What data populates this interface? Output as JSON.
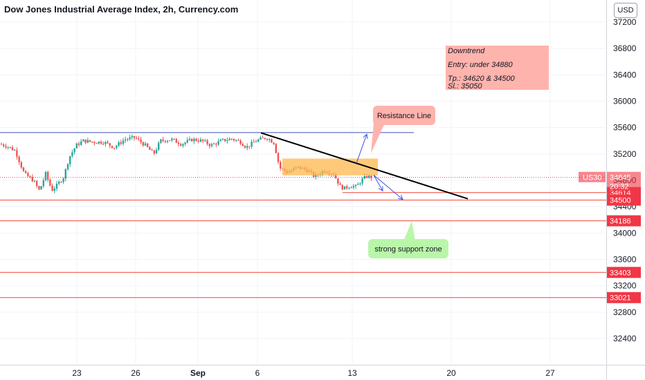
{
  "title": "Dow Jones Industrial Average Index, 2h, Currency.com",
  "currency": "USD",
  "colors": {
    "up": "#26a69a",
    "down": "#ef5350",
    "resistance_h": "#3f51b5",
    "trend": "#000000",
    "support": "#f44336",
    "tag": "#f23645",
    "orange": "#ffb74d",
    "note_red": "#ffb3ad",
    "note_green": "#b9f6a9",
    "arrow": "#3f51e5"
  },
  "y_axis": {
    "ticks": [
      37200,
      36800,
      36400,
      36000,
      35600,
      35200,
      34800,
      34400,
      34000,
      33600,
      33200,
      32800,
      32400
    ],
    "labels": [
      "37200",
      "36800",
      "36400",
      "36000",
      "35600",
      "35200",
      "34800",
      "34400",
      "34000",
      "33600",
      "33200",
      "32800",
      "32400"
    ]
  },
  "x_axis": {
    "labels": [
      "23",
      "26",
      "Sep",
      "6",
      "13",
      "20",
      "27"
    ],
    "bold": [
      false,
      false,
      true,
      false,
      false,
      false,
      false
    ]
  },
  "price_tags": [
    {
      "label": "34614",
      "value": 34614
    },
    {
      "label": "34500",
      "value": 34500
    },
    {
      "label": "34186",
      "value": 34186
    },
    {
      "label": "33403",
      "value": 33403
    },
    {
      "label": "33021",
      "value": 33021
    }
  ],
  "current": {
    "symbol": "US30",
    "price": "34845",
    "time": "20:32",
    "value": 34845
  },
  "levels": {
    "resistance_h": 35525
  },
  "notes": {
    "downtrend": {
      "line1": "Downtrend",
      "line2": "Entry: under 34880",
      "line3": "Tp.: 34620 & 34500",
      "line4": "Sl.: 35050"
    },
    "resistance": "Resistance Line",
    "support": "strong support zone"
  },
  "chart_data": {
    "type": "candlestick",
    "title": "Dow Jones Industrial Average Index, 2h, Currency.com",
    "ylim": [
      32150,
      37350
    ],
    "series_close_approx": [
      {
        "date": "Aug 19",
        "close": 35350
      },
      {
        "date": "Aug 20",
        "close": 34750
      },
      {
        "date": "Aug 21",
        "close": 34750
      },
      {
        "date": "Aug 23",
        "close": 35300
      },
      {
        "date": "Aug 25",
        "close": 35400
      },
      {
        "date": "Aug 27",
        "close": 35400
      },
      {
        "date": "Aug 30",
        "close": 35380
      },
      {
        "date": "Sep 1",
        "close": 35400
      },
      {
        "date": "Sep 3",
        "close": 35380
      },
      {
        "date": "Sep 6",
        "close": 35420
      },
      {
        "date": "Sep 8",
        "close": 35050
      },
      {
        "date": "Sep 10",
        "close": 34950
      },
      {
        "date": "Sep 13",
        "close": 34750
      },
      {
        "date": "Sep 14",
        "close": 34845
      }
    ]
  }
}
